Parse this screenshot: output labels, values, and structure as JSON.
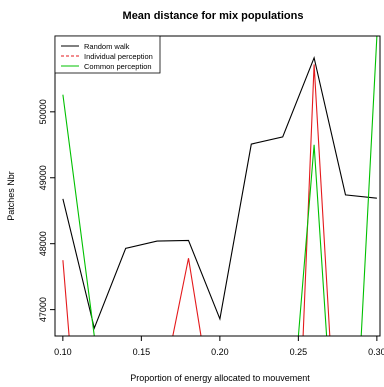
{
  "chart_data": {
    "type": "line",
    "title": "Mean distance for mix populations",
    "xlabel": "Proportion of energy allocated to mouvement",
    "ylabel": "Patches Nbr",
    "xlim": [
      0.095,
      0.302
    ],
    "ylim": [
      46600,
      51150
    ],
    "x_ticks": [
      0.1,
      0.15,
      0.2,
      0.25,
      0.3
    ],
    "x_tick_labels": [
      "0.10",
      "0.15",
      "0.20",
      "0.25",
      "0.30"
    ],
    "y_ticks": [
      47000,
      48000,
      49000,
      50000
    ],
    "y_tick_labels": [
      "47000",
      "48000",
      "49000",
      "50000"
    ],
    "legend_position": "top-left",
    "series": [
      {
        "name": "Random walk",
        "color": "#000000",
        "dash": "solid",
        "x": [
          0.1,
          0.12,
          0.14,
          0.16,
          0.18,
          0.2,
          0.22,
          0.24,
          0.26,
          0.28,
          0.3
        ],
        "y": [
          48680,
          46720,
          47930,
          48040,
          48050,
          46860,
          49510,
          49620,
          50820,
          48740,
          48690
        ]
      },
      {
        "name": "Individual perception",
        "color": "#e41a1c",
        "dash": "solid",
        "x": [
          0.1,
          0.104,
          null,
          0.17,
          0.18,
          0.188,
          null,
          0.253,
          0.26,
          0.27
        ],
        "y": [
          47750,
          46600,
          null,
          46600,
          47780,
          46600,
          null,
          46600,
          50720,
          46600
        ]
      },
      {
        "name": "Common perception",
        "color": "#00c000",
        "dash": "solid",
        "x": [
          0.1,
          0.12,
          null,
          0.25,
          0.26,
          0.268,
          null,
          0.29,
          0.3
        ],
        "y": [
          50260,
          46600,
          null,
          46600,
          49500,
          46600,
          null,
          46600,
          51150
        ]
      }
    ]
  }
}
